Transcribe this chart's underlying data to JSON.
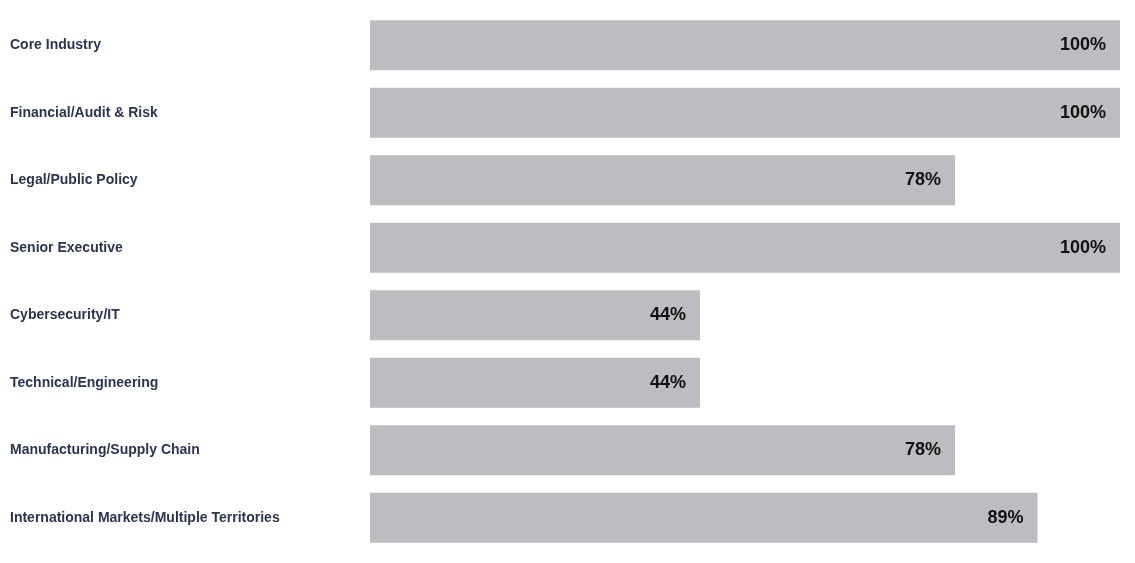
{
  "chart_data": {
    "type": "bar",
    "orientation": "horizontal",
    "categories": [
      "Core Industry",
      "Financial/Audit & Risk",
      "Legal/Public Policy",
      "Senior Executive",
      "Cybersecurity/IT",
      "Technical/Engineering",
      "Manufacturing/Supply Chain",
      "International Markets/Multiple Territories"
    ],
    "values": [
      100,
      100,
      78,
      100,
      44,
      44,
      78,
      89
    ],
    "value_labels": [
      "100%",
      "100%",
      "78%",
      "100%",
      "44%",
      "44%",
      "78%",
      "89%"
    ],
    "color": "#bcbdc0"
  }
}
